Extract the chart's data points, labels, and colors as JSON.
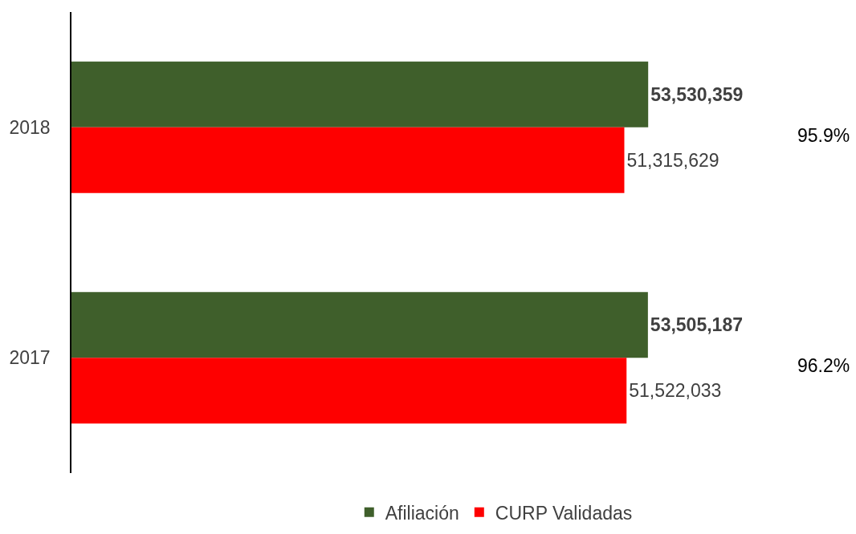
{
  "chart_data": {
    "type": "bar",
    "orientation": "horizontal",
    "categories": [
      "2018",
      "2017"
    ],
    "series": [
      {
        "name": "Afiliación",
        "color": "#3f5f2b",
        "values": [
          53530359,
          53505187
        ],
        "value_labels": [
          "53,530,359",
          "53,505,187"
        ]
      },
      {
        "name": "CURP Validadas",
        "color": "#fe0000",
        "values": [
          51315629,
          51522033
        ],
        "value_labels": [
          "51,315,629",
          "51,522,033"
        ]
      }
    ],
    "tick_labels": "y",
    "legend": "bottom",
    "annotations": [
      "95.9%",
      "96.2%"
    ]
  }
}
